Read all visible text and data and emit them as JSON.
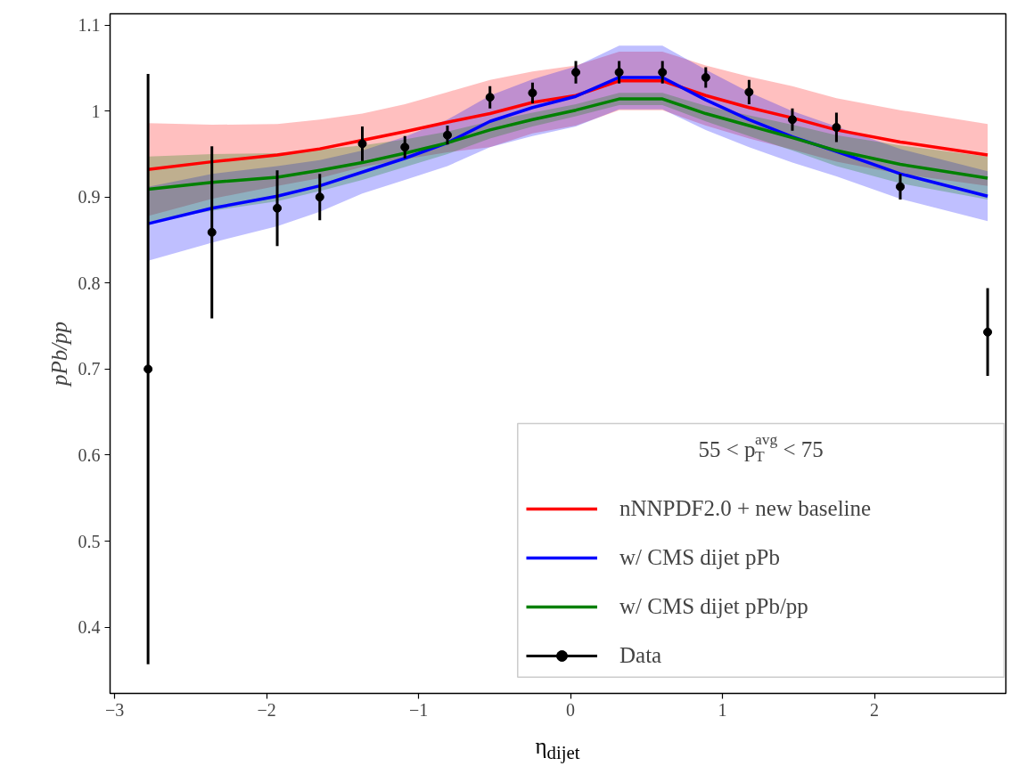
{
  "chart_data": {
    "type": "line",
    "xlabel": "η$_{dijet}$",
    "ylabel": "pPb/pp",
    "legend_title": "55 < p$_{T}$$^{avg}$ < 75",
    "legend": "bottom right",
    "grid": false,
    "xlim": [
      -3.03,
      2.865
    ],
    "ylim": [
      0.323,
      1.113
    ],
    "xticks": [
      {
        "value": -3,
        "label": "−3"
      },
      {
        "value": -2,
        "label": "−2"
      },
      {
        "value": -1,
        "label": "−1"
      },
      0,
      1,
      2
    ],
    "yticks": [
      0.4,
      0.5,
      0.6,
      0.7,
      0.8,
      0.9,
      1.0,
      1.1
    ],
    "x": [
      -2.78,
      -2.36,
      -1.93,
      -1.65,
      -1.37,
      -1.09,
      -0.81,
      -0.53,
      -0.25,
      0.035,
      0.32,
      0.605,
      0.89,
      1.175,
      1.46,
      1.75,
      2.17,
      2.745
    ],
    "series": [
      {
        "name": "nNNPDF2.0 + new baseline",
        "color": "#ff0000",
        "values": [
          0.932,
          0.941,
          0.949,
          0.956,
          0.966,
          0.976,
          0.987,
          0.997,
          1.01,
          1.018,
          1.035,
          1.035,
          1.018,
          1.004,
          0.992,
          0.978,
          0.964,
          0.949
        ],
        "lower": [
          0.878,
          0.898,
          0.913,
          0.922,
          0.935,
          0.944,
          0.952,
          0.958,
          0.974,
          0.983,
          1.001,
          1.001,
          0.983,
          0.968,
          0.955,
          0.941,
          0.927,
          0.913
        ],
        "upper": [
          0.986,
          0.984,
          0.985,
          0.99,
          0.997,
          1.008,
          1.022,
          1.036,
          1.046,
          1.053,
          1.069,
          1.069,
          1.053,
          1.04,
          1.029,
          1.015,
          1.001,
          0.985
        ]
      },
      {
        "name": "w/ CMS dijet pPb",
        "color": "#0000ff",
        "values": [
          0.869,
          0.887,
          0.901,
          0.913,
          0.929,
          0.945,
          0.963,
          0.988,
          1.004,
          1.017,
          1.039,
          1.039,
          1.013,
          0.99,
          0.97,
          0.953,
          0.927,
          0.901
        ],
        "lower": [
          0.826,
          0.847,
          0.866,
          0.883,
          0.904,
          0.92,
          0.936,
          0.958,
          0.971,
          0.982,
          1.002,
          1.002,
          0.978,
          0.958,
          0.94,
          0.924,
          0.898,
          0.872
        ],
        "upper": [
          0.912,
          0.927,
          0.936,
          0.943,
          0.954,
          0.97,
          0.99,
          1.018,
          1.037,
          1.052,
          1.076,
          1.076,
          1.048,
          1.022,
          1.0,
          0.982,
          0.956,
          0.93
        ]
      },
      {
        "name": "w/ CMS dijet pPb/pp",
        "color": "#008000",
        "values": [
          0.909,
          0.917,
          0.923,
          0.931,
          0.94,
          0.951,
          0.963,
          0.978,
          0.99,
          1.001,
          1.014,
          1.014,
          0.997,
          0.983,
          0.969,
          0.954,
          0.938,
          0.922
        ],
        "lower": [
          0.871,
          0.884,
          0.895,
          0.907,
          0.92,
          0.935,
          0.95,
          0.968,
          0.982,
          0.994,
          1.007,
          1.007,
          0.988,
          0.971,
          0.954,
          0.936,
          0.916,
          0.897
        ],
        "upper": [
          0.947,
          0.95,
          0.951,
          0.955,
          0.96,
          0.967,
          0.976,
          0.988,
          0.998,
          1.008,
          1.021,
          1.021,
          1.006,
          0.995,
          0.984,
          0.972,
          0.96,
          0.947
        ]
      },
      {
        "name": "Data",
        "type": "scatter",
        "marker": "circle",
        "color": "#000000",
        "values": [
          0.7,
          0.859,
          0.887,
          0.9,
          0.962,
          0.958,
          0.972,
          1.016,
          1.021,
          1.045,
          1.045,
          1.045,
          1.039,
          1.022,
          0.99,
          0.981,
          0.912,
          0.743
        ],
        "errors": [
          0.343,
          0.1,
          0.044,
          0.027,
          0.02,
          0.013,
          0.011,
          0.013,
          0.012,
          0.013,
          0.013,
          0.013,
          0.012,
          0.014,
          0.013,
          0.017,
          0.015,
          0.051
        ]
      }
    ]
  }
}
